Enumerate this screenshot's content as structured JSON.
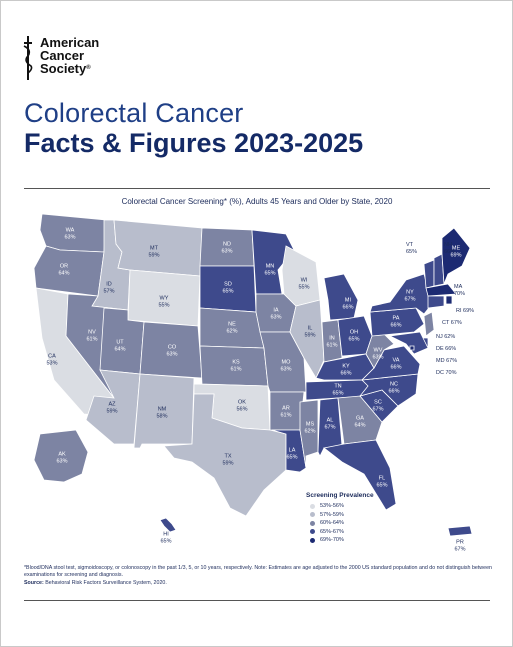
{
  "logo": {
    "line1": "American",
    "line2": "Cancer",
    "line3": "Society"
  },
  "title": {
    "line1": "Colorectal Cancer",
    "line2": "Facts & Figures 2023-2025"
  },
  "map_title": "Colorectal Cancer Screening* (%), Adults 45 Years and Older by State, 2020",
  "colors": {
    "c1": "#dadde3",
    "c2": "#b8bdcc",
    "c3": "#7d84a3",
    "c4": "#3e4a8c",
    "c5": "#1c2a72",
    "border": "#ffffff"
  },
  "states": [
    {
      "abbr": "WA",
      "value": "63%",
      "bin": "c3"
    },
    {
      "abbr": "OR",
      "value": "64%",
      "bin": "c3"
    },
    {
      "abbr": "CA",
      "value": "53%",
      "bin": "c1"
    },
    {
      "abbr": "ID",
      "value": "57%",
      "bin": "c2"
    },
    {
      "abbr": "NV",
      "value": "61%",
      "bin": "c3"
    },
    {
      "abbr": "MT",
      "value": "59%",
      "bin": "c2"
    },
    {
      "abbr": "WY",
      "value": "55%",
      "bin": "c1"
    },
    {
      "abbr": "UT",
      "value": "64%",
      "bin": "c3"
    },
    {
      "abbr": "AZ",
      "value": "59%",
      "bin": "c2"
    },
    {
      "abbr": "CO",
      "value": "63%",
      "bin": "c3"
    },
    {
      "abbr": "NM",
      "value": "58%",
      "bin": "c2"
    },
    {
      "abbr": "ND",
      "value": "63%",
      "bin": "c3"
    },
    {
      "abbr": "SD",
      "value": "65%",
      "bin": "c4"
    },
    {
      "abbr": "NE",
      "value": "62%",
      "bin": "c3"
    },
    {
      "abbr": "KS",
      "value": "61%",
      "bin": "c3"
    },
    {
      "abbr": "OK",
      "value": "56%",
      "bin": "c1"
    },
    {
      "abbr": "TX",
      "value": "59%",
      "bin": "c2"
    },
    {
      "abbr": "MN",
      "value": "65%",
      "bin": "c4"
    },
    {
      "abbr": "IA",
      "value": "63%",
      "bin": "c3"
    },
    {
      "abbr": "MO",
      "value": "63%",
      "bin": "c3"
    },
    {
      "abbr": "AR",
      "value": "61%",
      "bin": "c3"
    },
    {
      "abbr": "LA",
      "value": "65%",
      "bin": "c4"
    },
    {
      "abbr": "WI",
      "value": "55%",
      "bin": "c1"
    },
    {
      "abbr": "IL",
      "value": "59%",
      "bin": "c2"
    },
    {
      "abbr": "MI",
      "value": "66%",
      "bin": "c4"
    },
    {
      "abbr": "IN",
      "value": "61%",
      "bin": "c3"
    },
    {
      "abbr": "OH",
      "value": "65%",
      "bin": "c4"
    },
    {
      "abbr": "KY",
      "value": "66%",
      "bin": "c4"
    },
    {
      "abbr": "TN",
      "value": "65%",
      "bin": "c4"
    },
    {
      "abbr": "MS",
      "value": "62%",
      "bin": "c3"
    },
    {
      "abbr": "AL",
      "value": "67%",
      "bin": "c4"
    },
    {
      "abbr": "GA",
      "value": "64%",
      "bin": "c3"
    },
    {
      "abbr": "FL",
      "value": "65%",
      "bin": "c4"
    },
    {
      "abbr": "SC",
      "value": "67%",
      "bin": "c4"
    },
    {
      "abbr": "NC",
      "value": "66%",
      "bin": "c4"
    },
    {
      "abbr": "VA",
      "value": "66%",
      "bin": "c4"
    },
    {
      "abbr": "WV",
      "value": "63%",
      "bin": "c3"
    },
    {
      "abbr": "PA",
      "value": "66%",
      "bin": "c4"
    },
    {
      "abbr": "NY",
      "value": "67%",
      "bin": "c4"
    },
    {
      "abbr": "VT",
      "value": "65%",
      "bin": "c4"
    },
    {
      "abbr": "NH",
      "value": "66%",
      "bin": "c4"
    },
    {
      "abbr": "ME",
      "value": "69%",
      "bin": "c5"
    },
    {
      "abbr": "MA",
      "value": "70%",
      "bin": "c5"
    },
    {
      "abbr": "RI",
      "value": "69%",
      "bin": "c5"
    },
    {
      "abbr": "CT",
      "value": "67%",
      "bin": "c4"
    },
    {
      "abbr": "NJ",
      "value": "62%",
      "bin": "c3"
    },
    {
      "abbr": "DE",
      "value": "66%",
      "bin": "c4"
    },
    {
      "abbr": "MD",
      "value": "67%",
      "bin": "c4"
    },
    {
      "abbr": "DC",
      "value": "70%",
      "bin": "c5"
    },
    {
      "abbr": "AK",
      "value": "63%",
      "bin": "c3"
    },
    {
      "abbr": "HI",
      "value": "65%",
      "bin": "c4"
    },
    {
      "abbr": "PR",
      "value": "67%",
      "bin": "c4"
    }
  ],
  "legend": {
    "title": "Screening Prevalence",
    "items": [
      {
        "label": "53%-56%",
        "color": "#dadde3"
      },
      {
        "label": "57%-59%",
        "color": "#b8bdcc"
      },
      {
        "label": "60%-64%",
        "color": "#7d84a3"
      },
      {
        "label": "65%-67%",
        "color": "#3e4a8c"
      },
      {
        "label": "69%-70%",
        "color": "#1c2a72"
      }
    ]
  },
  "footnote": {
    "text": "*Blood/DNA stool test, sigmoidoscopy, or colonoscopy in the past 1/3, 5, or 10 years, respectively. Note: Estimates are age adjusted to the 2000 US standard population and do not distinguish between examinations for screening and diagnosis.",
    "source_label": "Source:",
    "source_text": "Behavioral Risk Factors Surveillance System, 2020."
  }
}
